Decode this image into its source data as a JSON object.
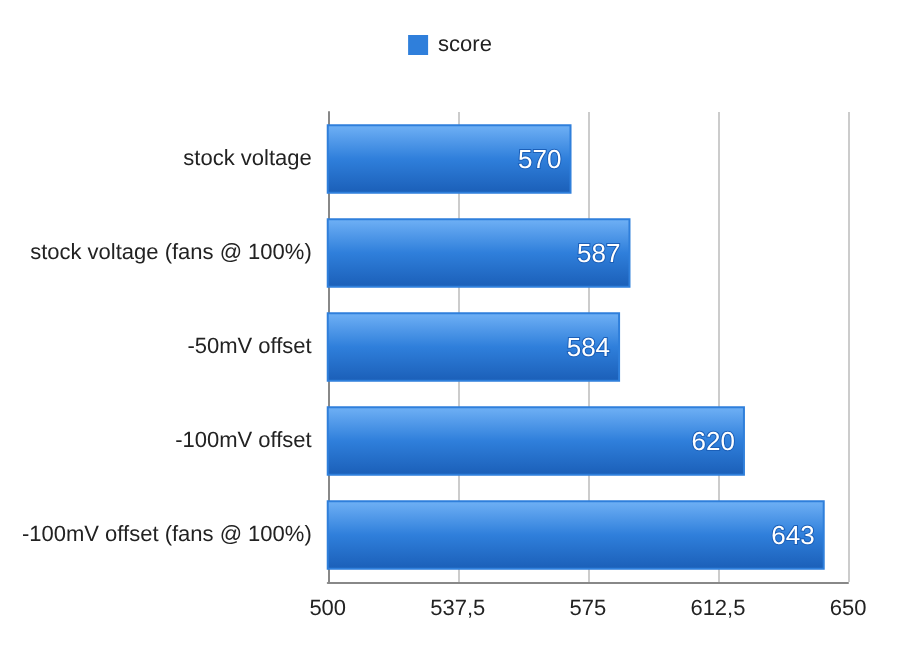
{
  "chart_data": {
    "type": "bar",
    "orientation": "horizontal",
    "categories": [
      "stock voltage",
      "stock voltage (fans @ 100%)",
      "-50mV offset",
      "-100mV offset",
      "-100mV offset (fans @ 100%)"
    ],
    "series": [
      {
        "name": "score",
        "color": "#2f7fdb",
        "values": [
          570,
          587,
          584,
          620,
          643
        ]
      }
    ],
    "xlim": [
      500,
      650
    ],
    "xticks": [
      500,
      {
        "value": 537.5,
        "label": "537,5"
      },
      575,
      {
        "value": 612.5,
        "label": "612,5"
      },
      650
    ],
    "grid": "x",
    "legend": "top",
    "data_labels": true
  }
}
